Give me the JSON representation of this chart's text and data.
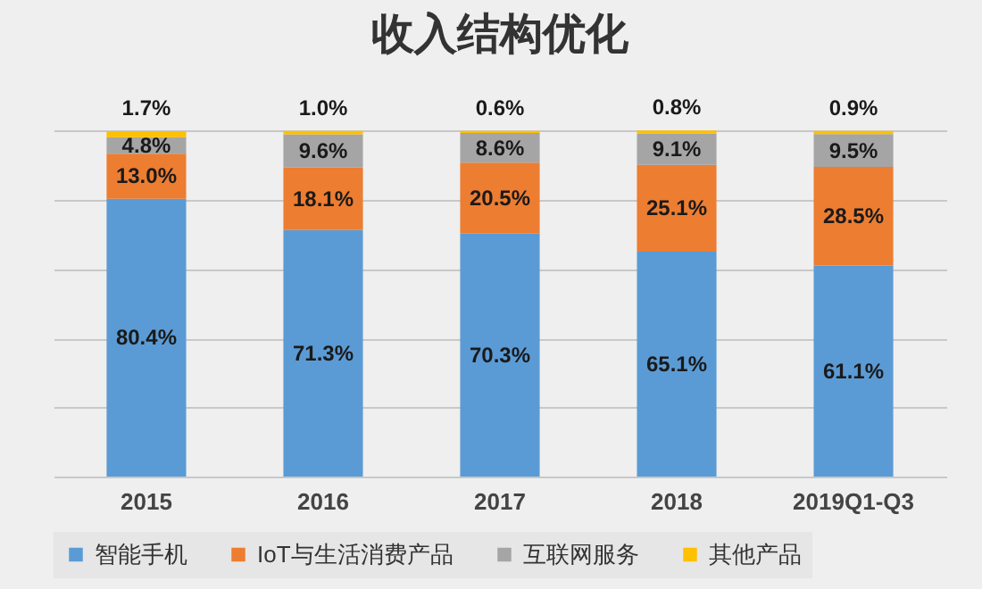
{
  "chart_data": {
    "type": "bar",
    "title": "收入结构优化",
    "categories": [
      "2015",
      "2016",
      "2017",
      "2018",
      "2019Q1-Q3"
    ],
    "stacked": true,
    "series": [
      {
        "name": "智能手机",
        "color": "#5b9bd5",
        "values": [
          80.4,
          71.3,
          70.3,
          65.1,
          61.1
        ],
        "value_labels": [
          "80.4%",
          "71.3%",
          "70.3%",
          "65.1%",
          "61.1%"
        ]
      },
      {
        "name": "IoT与生活消费产品",
        "color": "#ed7d31",
        "values": [
          13.0,
          18.1,
          20.5,
          25.1,
          28.5
        ],
        "value_labels": [
          "13.0%",
          "18.1%",
          "20.5%",
          "25.1%",
          "28.5%"
        ]
      },
      {
        "name": "互联网服务",
        "color": "#a5a5a5",
        "values": [
          4.8,
          9.6,
          8.6,
          9.1,
          9.5
        ],
        "value_labels": [
          "4.8%",
          "9.6%",
          "8.6%",
          "9.1%",
          "9.5%"
        ]
      },
      {
        "name": "其他产品",
        "color": "#ffc000",
        "values": [
          1.7,
          1.0,
          0.6,
          0.8,
          0.9
        ],
        "value_labels": [
          "1.7%",
          "1.0%",
          "0.6%",
          "0.8%",
          "0.9%"
        ]
      }
    ],
    "grid": "y",
    "legend": "bottom",
    "tick_labels": "x"
  }
}
